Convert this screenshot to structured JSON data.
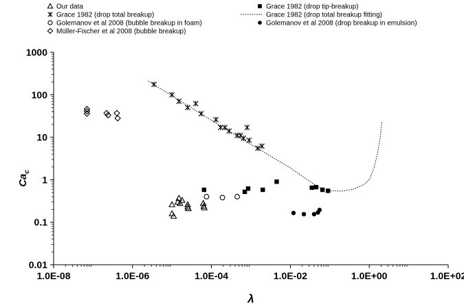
{
  "chart_data": {
    "type": "scatter",
    "xlabel": "λ",
    "ylabel_main": "Ca",
    "ylabel_sub": "c",
    "x_scale": "log",
    "y_scale": "log",
    "xlim": [
      1e-08,
      100
    ],
    "ylim": [
      0.01,
      1000
    ],
    "grid": false,
    "legend_position": "top",
    "x_ticks": [
      {
        "value": 1e-08,
        "label": "1.0E-08"
      },
      {
        "value": 1e-06,
        "label": "1.0E-06"
      },
      {
        "value": 0.0001,
        "label": "1.0E-04"
      },
      {
        "value": 0.01,
        "label": "1.0E-02"
      },
      {
        "value": 1,
        "label": "1.0E+00"
      },
      {
        "value": 100,
        "label": "1.0E+02"
      }
    ],
    "y_ticks": [
      {
        "value": 0.01,
        "label": "0.01"
      },
      {
        "value": 0.1,
        "label": "0.1"
      },
      {
        "value": 1,
        "label": "1"
      },
      {
        "value": 10,
        "label": "10"
      },
      {
        "value": 100,
        "label": "100"
      },
      {
        "value": 1000,
        "label": "1000"
      }
    ],
    "series": [
      {
        "name": "Our data",
        "marker": "triangle-open",
        "points": [
          [
            1e-05,
            0.26
          ],
          [
            1e-05,
            0.16
          ],
          [
            1.1e-05,
            0.14
          ],
          [
            1.4e-05,
            0.3
          ],
          [
            1.5e-05,
            0.37
          ],
          [
            1.6e-05,
            0.28
          ],
          [
            1.8e-05,
            0.33
          ],
          [
            2.5e-05,
            0.26
          ],
          [
            2.5e-05,
            0.23
          ],
          [
            2.6e-05,
            0.21
          ],
          [
            6.2e-05,
            0.28
          ],
          [
            6.4e-05,
            0.24
          ],
          [
            6.6e-05,
            0.22
          ]
        ]
      },
      {
        "name": "Grace 1982 (drop total breakup)",
        "marker": "asterisk",
        "points": [
          [
            3.5e-06,
            175
          ],
          [
            1e-05,
            100
          ],
          [
            1.5e-05,
            70
          ],
          [
            2.5e-05,
            50
          ],
          [
            4e-05,
            62
          ],
          [
            5.5e-05,
            36
          ],
          [
            0.00013,
            26
          ],
          [
            0.00017,
            17
          ],
          [
            0.00022,
            17
          ],
          [
            0.00028,
            14
          ],
          [
            0.00045,
            11
          ],
          [
            0.00055,
            11
          ],
          [
            0.00065,
            9.5
          ],
          [
            0.0008,
            17
          ],
          [
            0.0009,
            8.5
          ],
          [
            0.0015,
            5.5
          ],
          [
            0.0019,
            6.2
          ]
        ]
      },
      {
        "name": "Golemanov et al 2008 (bubble breakup in foam)",
        "marker": "circle-open",
        "points": [
          [
            7.5e-05,
            0.4
          ],
          [
            0.00019,
            0.38
          ],
          [
            0.00045,
            0.4
          ]
        ]
      },
      {
        "name": "Müller-Fischer et al 2008 (bubble breakup)",
        "marker": "diamond-open",
        "points": [
          [
            7e-08,
            46
          ],
          [
            7e-08,
            41
          ],
          [
            7e-08,
            36
          ],
          [
            2.2e-07,
            37
          ],
          [
            2.4e-07,
            33
          ],
          [
            4e-07,
            37
          ],
          [
            4.2e-07,
            28
          ]
        ]
      },
      {
        "name": "Grace 1982 (drop tip-breakup)",
        "marker": "square-filled",
        "points": [
          [
            6.5e-05,
            0.58
          ],
          [
            0.0007,
            0.52
          ],
          [
            0.00085,
            0.62
          ],
          [
            0.002,
            0.58
          ],
          [
            0.0045,
            0.9
          ],
          [
            0.035,
            0.65
          ],
          [
            0.045,
            0.67
          ],
          [
            0.065,
            0.58
          ],
          [
            0.09,
            0.55
          ]
        ]
      },
      {
        "name": "Grace 1982 (drop total breakup fitting)",
        "marker": "dotted-line",
        "points": [
          [
            2.5e-06,
            210
          ],
          [
            1e-05,
            95
          ],
          [
            0.0001,
            25
          ],
          [
            0.001,
            6.8
          ],
          [
            0.01,
            1.9
          ],
          [
            0.035,
            0.85
          ],
          [
            0.06,
            0.62
          ],
          [
            0.1,
            0.55
          ],
          [
            0.2,
            0.54
          ],
          [
            0.4,
            0.6
          ],
          [
            0.7,
            0.75
          ],
          [
            1.0,
            1.0
          ],
          [
            1.3,
            1.8
          ],
          [
            1.6,
            4
          ],
          [
            1.9,
            10
          ],
          [
            2.1,
            24
          ]
        ]
      },
      {
        "name": "Golemanov et al 2008 (drop breakup in emulsion)",
        "marker": "circle-filled",
        "points": [
          [
            0.012,
            0.165
          ],
          [
            0.022,
            0.155
          ],
          [
            0.04,
            0.155
          ],
          [
            0.05,
            0.17
          ],
          [
            0.055,
            0.195
          ]
        ]
      }
    ]
  }
}
